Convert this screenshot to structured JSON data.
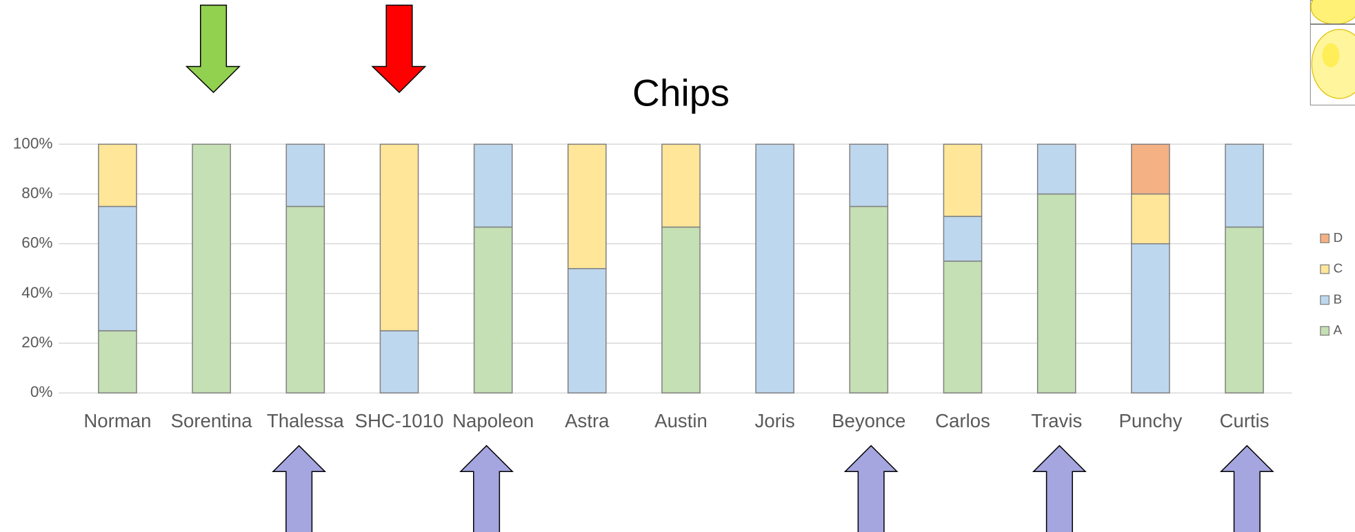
{
  "chart_data": {
    "type": "stacked_bar",
    "title": "Chips",
    "categories": [
      "Norman",
      "Sorentina",
      "Thalessa",
      "SHC-1010",
      "Napoleon",
      "Astra",
      "Austin",
      "Joris",
      "Beyonce",
      "Carlos",
      "Travis",
      "Punchy",
      "Curtis"
    ],
    "series": [
      {
        "name": "A",
        "color": "#c5e0b4",
        "values": [
          25,
          100,
          75,
          0,
          66.7,
          0,
          66.7,
          0,
          75,
          53,
          80,
          0,
          66.7
        ]
      },
      {
        "name": "B",
        "color": "#bdd7ee",
        "values": [
          50,
          0,
          25,
          25,
          33.3,
          50,
          0,
          100,
          25,
          18,
          20,
          60,
          33.3
        ]
      },
      {
        "name": "C",
        "color": "#ffe699",
        "values": [
          25,
          0,
          0,
          75,
          0,
          50,
          33.3,
          0,
          0,
          29,
          0,
          20,
          0
        ]
      },
      {
        "name": "D",
        "color": "#f4b183",
        "values": [
          0,
          0,
          0,
          0,
          0,
          0,
          0,
          0,
          0,
          0,
          0,
          20,
          0
        ]
      }
    ],
    "ylim": [
      0,
      100
    ],
    "yticks": [
      {
        "value": 0,
        "label": "0%"
      },
      {
        "value": 20,
        "label": "20%"
      },
      {
        "value": 40,
        "label": "40%"
      },
      {
        "value": 60,
        "label": "60%"
      },
      {
        "value": 80,
        "label": "80%"
      },
      {
        "value": 100,
        "label": "100%"
      }
    ],
    "grid": true,
    "legend": "right"
  }
}
